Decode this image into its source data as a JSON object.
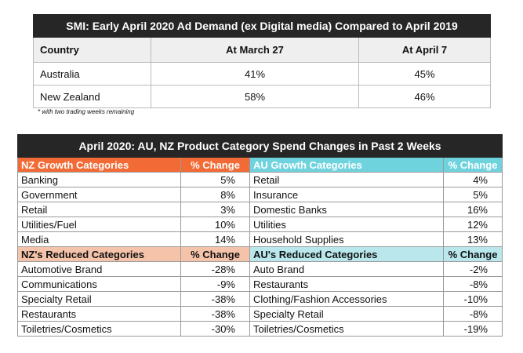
{
  "top_table": {
    "title": "SMI: Early April 2020 Ad Demand (ex Digital media) Compared to April 2019",
    "columns": [
      "Country",
      "At March 27",
      "At April 7"
    ],
    "rows": [
      [
        "Australia",
        "41%",
        "45%"
      ],
      [
        "New Zealand",
        "58%",
        "46%"
      ]
    ],
    "note": "* with two trading weeks remaining"
  },
  "bottom_table": {
    "title": "April 2020: AU, NZ Product Category Spend Changes in Past 2 Weeks",
    "sections": [
      {
        "headers": [
          "NZ Growth Categories",
          "% Change",
          "AU Growth Categories",
          "% Change"
        ],
        "rows": [
          [
            "Banking",
            "5%",
            "Retail",
            "4%"
          ],
          [
            "Government",
            "8%",
            "Insurance",
            "5%"
          ],
          [
            "Retail",
            "3%",
            "Domestic Banks",
            "16%"
          ],
          [
            "Utilities/Fuel",
            "10%",
            "Utilities",
            "12%"
          ],
          [
            "Media",
            "14%",
            "Household Supplies",
            "13%"
          ]
        ]
      },
      {
        "headers": [
          "NZ's Reduced Categories",
          "% Change",
          "AU's Reduced Categories",
          "% Change"
        ],
        "rows": [
          [
            "Automotive Brand",
            "-28%",
            "Auto Brand",
            "-2%"
          ],
          [
            "Communications",
            "-9%",
            "Restaurants",
            "-8%"
          ],
          [
            "Specialty Retail",
            "-38%",
            "Clothing/Fashion Accessories",
            "-10%"
          ],
          [
            "Restaurants",
            "-38%",
            "Specialty Retail",
            "-8%"
          ],
          [
            "Toiletries/Cosmetics",
            "-30%",
            "Toiletries/Cosmetics",
            "-19%"
          ]
        ]
      }
    ]
  }
}
